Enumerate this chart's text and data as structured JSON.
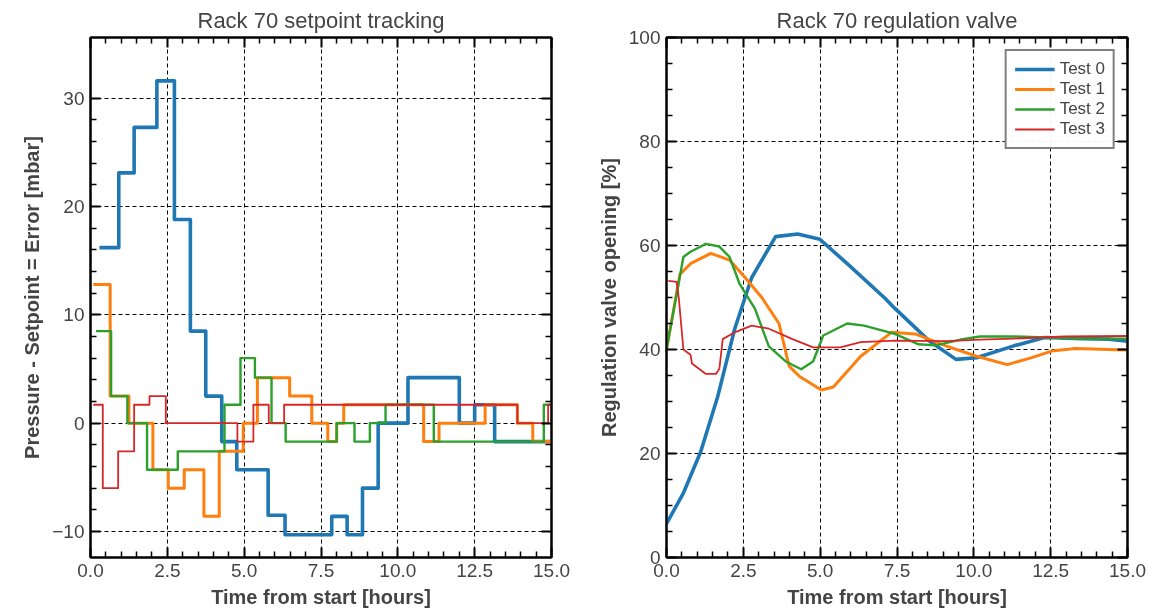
{
  "chart_data": [
    {
      "type": "step",
      "title": "Rack 70 setpoint tracking",
      "xlabel": "Time from start [hours]",
      "ylabel": "Pressure - Setpoint = Error [mbar]",
      "xlim": [
        0,
        15
      ],
      "ylim": [
        -12.4,
        35.6
      ],
      "xticks": [
        {
          "value": 0,
          "label": "0.0"
        },
        {
          "value": 2.5,
          "label": "2.5"
        },
        {
          "value": 5,
          "label": "5.0"
        },
        {
          "value": 7.5,
          "label": "7.5"
        },
        {
          "value": 10,
          "label": "10.0"
        },
        {
          "value": 12.5,
          "label": "12.5"
        },
        {
          "value": 15,
          "label": "15.0"
        }
      ],
      "yticks": [
        {
          "value": -10,
          "label": "−10"
        },
        0,
        10,
        20,
        30
      ],
      "grid": true,
      "legend": false,
      "series": [
        {
          "color": "#1f77b4",
          "x": [
            0.29,
            0.92,
            1.42,
            2.16,
            2.73,
            3.25,
            3.75,
            4.27,
            4.76,
            5.78,
            6.33,
            7.85,
            8.35,
            8.85,
            9.36,
            10.33,
            12.0,
            12.5,
            13.15,
            15.0
          ],
          "values": [
            16.2,
            23.1,
            27.3,
            31.6,
            18.8,
            8.5,
            2.5,
            -1.7,
            -4.3,
            -8.5,
            -10.3,
            -8.6,
            -10.3,
            -6.0,
            0,
            4.2,
            0,
            1.7,
            -1.7,
            -1.7
          ]
        },
        {
          "color": "#ff7f0e",
          "x": [
            0.09,
            0.64,
            1.25,
            2.03,
            2.53,
            3.05,
            3.69,
            4.19,
            4.97,
            5.43,
            6.48,
            7.2,
            7.72,
            8.01,
            8.24,
            10.84,
            11.34,
            12.84,
            13.89,
            14.39,
            15.0
          ],
          "values": [
            12.8,
            2.5,
            0,
            -4.3,
            -6.0,
            -4.3,
            -8.6,
            -2.6,
            0,
            4.2,
            2.5,
            0,
            -1.7,
            0,
            1.7,
            -1.7,
            0,
            1.7,
            0,
            -1.7,
            -1.7
          ]
        },
        {
          "color": "#2ca02c",
          "x": [
            0.18,
            0.67,
            1.2,
            1.84,
            2.84,
            4.36,
            4.88,
            5.35,
            5.89,
            6.35,
            8.01,
            8.59,
            9.09,
            9.6,
            11.17,
            14.75,
            15.0
          ],
          "values": [
            8.5,
            2.5,
            0,
            -4.3,
            -2.6,
            1.7,
            6.0,
            4.2,
            0,
            -1.7,
            0,
            -1.7,
            0,
            1.7,
            -1.7,
            1.7,
            1.7
          ]
        },
        {
          "color": "#d62728",
          "x": [
            0.09,
            0.4,
            0.9,
            1.42,
            1.92,
            2.45,
            4.78,
            5.3,
            5.8,
            6.3,
            13.89,
            14.89,
            15.0
          ],
          "values": [
            1.7,
            -6.0,
            -2.6,
            1.7,
            2.5,
            0,
            -1.7,
            1.7,
            0,
            1.7,
            0,
            1.7,
            1.7
          ]
        }
      ]
    },
    {
      "type": "line",
      "title": "Rack 70 regulation valve",
      "xlabel": "Time from start [hours]",
      "ylabel": "Regulation valve opening [%]",
      "xlim": [
        0,
        15
      ],
      "ylim": [
        0,
        100
      ],
      "xticks": [
        {
          "value": 0,
          "label": "0.0"
        },
        {
          "value": 2.5,
          "label": "2.5"
        },
        {
          "value": 5,
          "label": "5.0"
        },
        {
          "value": 7.5,
          "label": "7.5"
        },
        {
          "value": 10,
          "label": "10.0"
        },
        {
          "value": 12.5,
          "label": "12.5"
        },
        {
          "value": 15,
          "label": "15.0"
        }
      ],
      "yticks": [
        0,
        20,
        40,
        60,
        80,
        100
      ],
      "grid": true,
      "legend": "top right",
      "series": [
        {
          "name": "Test 0",
          "color": "#1f77b4",
          "x": [
            0,
            0.55,
            1.11,
            1.66,
            2.22,
            2.77,
            3.55,
            4.27,
            4.99,
            5.88,
            7.1,
            7.43,
            8.54,
            9.42,
            10.09,
            11.3,
            12.3,
            13.53,
            14.4,
            15.0
          ],
          "values": [
            6.5,
            12.4,
            20.3,
            30.8,
            44,
            53.8,
            61.7,
            62.2,
            61.2,
            56.5,
            49.9,
            47.9,
            41.7,
            38.1,
            38.4,
            40.7,
            42.3,
            42.1,
            42,
            41.6
          ]
        },
        {
          "name": "Test 1",
          "color": "#ff7f0e",
          "x": [
            0,
            0.44,
            0.78,
            1.44,
            2.05,
            2.55,
            3.1,
            3.66,
            3.99,
            4.33,
            5.04,
            5.43,
            6.32,
            7.32,
            8.09,
            9.09,
            10.09,
            11.09,
            11.86,
            12.53,
            13.3,
            14.95
          ],
          "values": [
            40,
            54.5,
            56.5,
            58.5,
            57.2,
            53.9,
            50,
            45,
            36.8,
            34.8,
            32.2,
            32.8,
            38.7,
            43.3,
            43,
            40.7,
            38.7,
            37.1,
            38.4,
            39.7,
            40.2,
            39.9
          ]
        },
        {
          "name": "Test 2",
          "color": "#2ca02c",
          "x": [
            0,
            0.55,
            0.78,
            1.28,
            1.72,
            2.05,
            2.38,
            2.88,
            3.33,
            3.88,
            4.38,
            4.77,
            5.1,
            5.88,
            6.43,
            7.43,
            8.2,
            8.76,
            9.64,
            10.2,
            11.3,
            13.5,
            15.0
          ],
          "values": [
            40,
            57.8,
            58.8,
            60.3,
            59.8,
            57.8,
            52.6,
            47.8,
            40.6,
            37.7,
            36.2,
            37.7,
            42.7,
            45,
            44.6,
            43,
            41,
            40.8,
            42,
            42.5,
            42.5,
            42.1,
            42.1
          ]
        },
        {
          "name": "Test 3",
          "color": "#d62728",
          "x": [
            0.06,
            0.33,
            0.4,
            0.55,
            0.78,
            0.83,
            1.28,
            1.61,
            1.72,
            1.83,
            2.22,
            2.77,
            3.33,
            4.1,
            4.77,
            5.65,
            6.32,
            7.43,
            9.09,
            10.2,
            11.3,
            12.97,
            15.0
          ],
          "values": [
            53.2,
            53,
            49.9,
            40,
            39,
            37.3,
            35.3,
            35.3,
            36.3,
            42,
            43.3,
            44.6,
            44,
            42,
            40.4,
            40.4,
            41.4,
            41.7,
            41.6,
            41.9,
            42.1,
            42.5,
            42.6
          ]
        }
      ]
    }
  ]
}
